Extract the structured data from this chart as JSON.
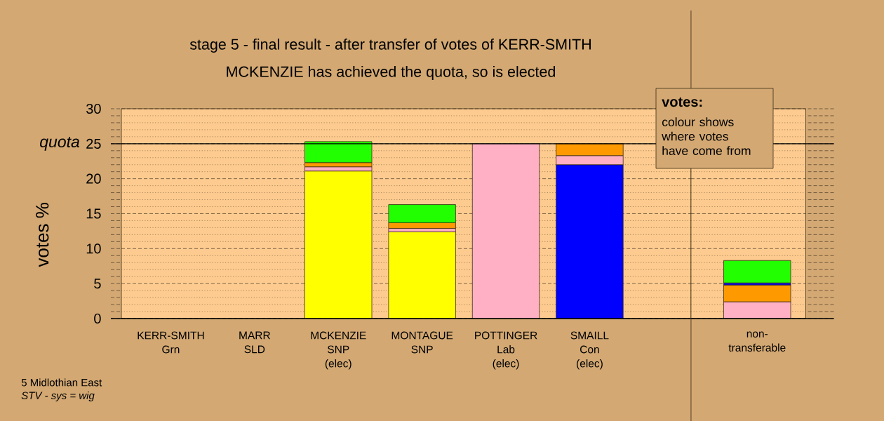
{
  "chart_data": [
    {
      "type": "bar",
      "stacked": true,
      "title": "stage 5 - final result - after transfer of votes of KERR-SMITH",
      "subtitle": "MCKENZIE has achieved the quota, so is elected",
      "ylabel": "votes %",
      "categories": [
        "KERR-SMITH\nGrn",
        "MARR\nSLD",
        "MCKENZIE\nSNP\n(elec)",
        "MONTAGUE\nSNP",
        "POTTINGER\nLab\n(elec)",
        "SMAILL\nCon\n(elec)"
      ],
      "series": [
        {
          "color": "#ffff00",
          "values": [
            null,
            null,
            21.1,
            12.4,
            null,
            null
          ]
        },
        {
          "color": "#0000ff",
          "values": [
            null,
            null,
            null,
            null,
            null,
            22.0
          ]
        },
        {
          "color": "#ffb0c4",
          "values": [
            null,
            null,
            0.6,
            0.5,
            25.0,
            1.3
          ]
        },
        {
          "color": "#ff9900",
          "values": [
            null,
            null,
            0.6,
            0.8,
            null,
            1.7
          ]
        },
        {
          "color": "#22ff00",
          "values": [
            null,
            null,
            3.0,
            2.6,
            null,
            null
          ]
        }
      ],
      "ylim": [
        0,
        30
      ],
      "yticks": [
        0,
        {
          "value": 1,
          "label": null
        },
        {
          "value": 2,
          "label": null
        },
        {
          "value": 3,
          "label": null
        },
        {
          "value": 4,
          "label": null
        },
        5,
        {
          "value": 6,
          "label": null
        },
        {
          "value": 7,
          "label": null
        },
        {
          "value": 8,
          "label": null
        },
        {
          "value": 9,
          "label": null
        },
        10,
        {
          "value": 11,
          "label": null
        },
        {
          "value": 12,
          "label": null
        },
        {
          "value": 13,
          "label": null
        },
        {
          "value": 14,
          "label": null
        },
        15,
        {
          "value": 16,
          "label": null
        },
        {
          "value": 17,
          "label": null
        },
        {
          "value": 18,
          "label": null
        },
        {
          "value": 19,
          "label": null
        },
        20,
        {
          "value": 21,
          "label": null
        },
        {
          "value": 22,
          "label": null
        },
        {
          "value": 23,
          "label": null
        },
        {
          "value": 24,
          "label": null
        },
        25,
        {
          "value": 26,
          "label": null
        },
        {
          "value": 27,
          "label": null
        },
        {
          "value": 28,
          "label": null
        },
        {
          "value": 29,
          "label": null
        },
        30
      ],
      "grid": "y",
      "ref_lines": [
        {
          "axis": "y",
          "value": 25,
          "label": "quota"
        }
      ],
      "annotations": [
        "votes:",
        "colour shows\nwhere votes\nhave come from",
        "5 Midlothian East",
        "STV - sys = wig"
      ]
    },
    {
      "type": "bar",
      "stacked": true,
      "categories": [
        "non-\ntransferable"
      ],
      "series": [
        {
          "color": "#ffb0c4",
          "values": [
            2.4
          ]
        },
        {
          "color": "#ff9900",
          "values": [
            2.4
          ]
        },
        {
          "color": "#0000ff",
          "values": [
            0.3
          ]
        },
        {
          "color": "#22ff00",
          "values": [
            3.2
          ]
        }
      ],
      "ylim": [
        0,
        30
      ],
      "yticks": [
        0,
        {
          "value": 1,
          "label": null
        },
        {
          "value": 2,
          "label": null
        },
        {
          "value": 3,
          "label": null
        },
        {
          "value": 4,
          "label": null
        },
        5,
        {
          "value": 6,
          "label": null
        },
        {
          "value": 7,
          "label": null
        },
        {
          "value": 8,
          "label": null
        },
        {
          "value": 9,
          "label": null
        },
        10,
        {
          "value": 11,
          "label": null
        },
        {
          "value": 12,
          "label": null
        },
        {
          "value": 13,
          "label": null
        },
        {
          "value": 14,
          "label": null
        },
        15,
        {
          "value": 16,
          "label": null
        },
        {
          "value": 17,
          "label": null
        },
        {
          "value": 18,
          "label": null
        },
        {
          "value": 19,
          "label": null
        },
        20,
        {
          "value": 21,
          "label": null
        },
        {
          "value": 22,
          "label": null
        },
        {
          "value": 23,
          "label": null
        },
        {
          "value": 24,
          "label": null
        },
        25,
        {
          "value": 26,
          "label": null
        },
        {
          "value": 27,
          "label": null
        },
        {
          "value": 28,
          "label": null
        },
        {
          "value": 29,
          "label": null
        },
        30
      ],
      "grid": "y",
      "ref_lines": [
        {
          "axis": "y",
          "value": 25
        }
      ],
      "tick_labels": "x"
    }
  ]
}
